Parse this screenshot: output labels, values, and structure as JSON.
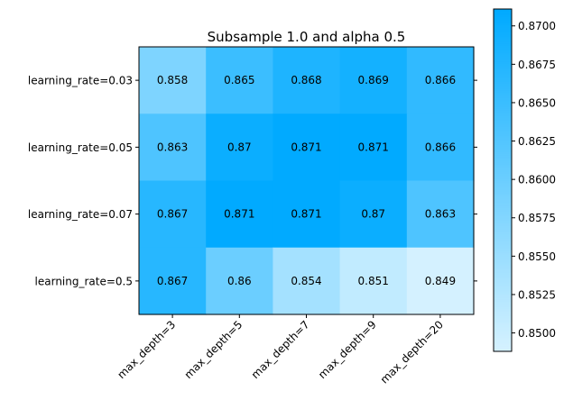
{
  "chart_data": {
    "type": "heatmap",
    "title": "Subsample 1.0 and alpha 0.5",
    "xlabel": "",
    "ylabel": "",
    "x_categories": [
      "max_depth=3",
      "max_depth=5",
      "max_depth=7",
      "max_depth=9",
      "max_depth=20"
    ],
    "y_categories": [
      "learning_rate=0.03",
      "learning_rate=0.05",
      "learning_rate=0.07",
      "learning_rate=0.5"
    ],
    "values": [
      [
        0.858,
        0.865,
        0.868,
        0.869,
        0.866
      ],
      [
        0.863,
        0.87,
        0.871,
        0.871,
        0.866
      ],
      [
        0.867,
        0.871,
        0.871,
        0.87,
        0.863
      ],
      [
        0.867,
        0.86,
        0.854,
        0.851,
        0.849
      ]
    ],
    "cell_labels": [
      [
        "0.858",
        "0.865",
        "0.868",
        "0.869",
        "0.866"
      ],
      [
        "0.863",
        "0.87",
        "0.871",
        "0.871",
        "0.866"
      ],
      [
        "0.867",
        "0.871",
        "0.871",
        "0.87",
        "0.863"
      ],
      [
        "0.867",
        "0.86",
        "0.854",
        "0.851",
        "0.849"
      ]
    ],
    "colorbar": {
      "range": [
        0.8488,
        0.8711
      ],
      "ticks": [
        0.85,
        0.8525,
        0.855,
        0.8575,
        0.86,
        0.8625,
        0.865,
        0.8675,
        0.87
      ],
      "tick_labels": [
        "0.8500",
        "0.8525",
        "0.8550",
        "0.8575",
        "0.8600",
        "0.8625",
        "0.8650",
        "0.8675",
        "0.8700"
      ],
      "color_low": "#d6f2ff",
      "color_high": "#00aaff"
    },
    "grid": false
  }
}
